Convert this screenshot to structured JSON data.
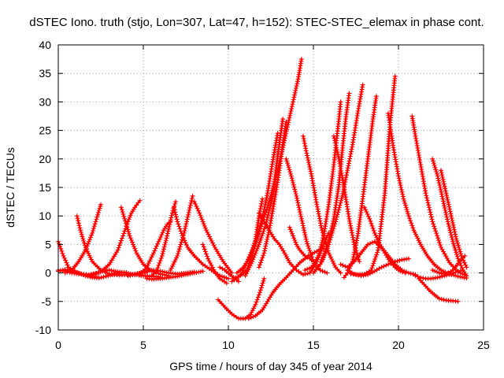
{
  "chart_data": {
    "type": "scatter",
    "title": "dSTEC Iono. truth (stjo, Lon=307, Lat=47, h=152): STEC-STEC_elemax in phase cont.",
    "xlabel": "GPS time / hours of day 345 of year 2014",
    "ylabel": "dSTEC  / TECUs",
    "xlim": [
      0,
      25
    ],
    "ylim": [
      -10,
      40
    ],
    "xticks": [
      0,
      5,
      10,
      15,
      20,
      25
    ],
    "yticks": [
      -10,
      -5,
      0,
      5,
      10,
      15,
      20,
      25,
      30,
      35,
      40
    ],
    "grid": true,
    "marker": "+",
    "color": "#ff0000",
    "series": [
      {
        "x": [
          0.0,
          0.3,
          0.6,
          1.0,
          1.5,
          2.0,
          2.4
        ],
        "y": [
          5.5,
          3.0,
          1.0,
          0.2,
          -0.3,
          -0.6,
          -0.8
        ]
      },
      {
        "x": [
          0.0,
          0.4,
          0.8,
          1.2,
          1.8,
          2.2,
          2.6,
          3.0,
          3.5,
          4.0,
          4.5,
          5.0,
          5.5,
          6.0
        ],
        "y": [
          0.5,
          0.3,
          0.0,
          -0.2,
          -0.3,
          -0.1,
          0.3,
          0.5,
          0.2,
          0.0,
          -0.3,
          -0.5,
          -0.6,
          -0.7
        ]
      },
      {
        "x": [
          0.0,
          0.4,
          0.8,
          1.2,
          1.6,
          2.0,
          2.4,
          2.8,
          3.2,
          3.6,
          4.0
        ],
        "y": [
          0.3,
          0.6,
          0.4,
          0.0,
          -0.5,
          -0.8,
          -0.9,
          -0.6,
          -0.3,
          0.0,
          0.1
        ]
      },
      {
        "x": [
          0.4,
          0.8,
          1.2,
          1.6,
          2.0,
          2.2,
          2.4,
          2.5
        ],
        "y": [
          0.0,
          0.5,
          2.0,
          4.0,
          7.0,
          9.0,
          11.0,
          12.0
        ]
      },
      {
        "x": [
          1.1,
          1.3,
          1.6,
          2.0,
          2.5,
          3.0,
          3.6,
          4.2,
          4.8,
          5.2
        ],
        "y": [
          10.0,
          7.5,
          4.5,
          2.0,
          0.5,
          -0.2,
          -0.4,
          -0.3,
          0.0,
          0.2
        ]
      },
      {
        "x": [
          2.0,
          2.5,
          3.0,
          3.5,
          3.8,
          4.1,
          4.3,
          4.5,
          4.7,
          4.8
        ],
        "y": [
          -0.3,
          0.2,
          1.5,
          4.0,
          6.5,
          9.0,
          10.5,
          11.5,
          12.3,
          12.7
        ]
      },
      {
        "x": [
          3.7,
          3.9,
          4.2,
          4.6,
          5.0,
          5.5,
          6.0,
          6.5
        ],
        "y": [
          11.5,
          9.5,
          6.5,
          3.5,
          1.5,
          0.3,
          -0.2,
          -0.5
        ]
      },
      {
        "x": [
          4.1,
          4.5,
          5.0,
          5.5,
          6.0,
          6.5,
          7.0,
          7.5,
          8.0
        ],
        "y": [
          -0.5,
          -0.3,
          0.2,
          0.5,
          0.3,
          0.0,
          -0.2,
          0.0,
          0.2
        ]
      },
      {
        "x": [
          4.8,
          5.2,
          5.6,
          5.9,
          6.2,
          6.4,
          6.6
        ],
        "y": [
          -0.3,
          1.0,
          3.5,
          5.5,
          7.5,
          8.5,
          9.0
        ]
      },
      {
        "x": [
          5.2,
          5.5,
          6.0,
          6.5,
          7.0,
          7.5,
          8.0,
          8.5
        ],
        "y": [
          -1.0,
          -1.1,
          -1.0,
          -0.8,
          -0.6,
          -0.3,
          0.0,
          0.3
        ]
      },
      {
        "x": [
          5.5,
          5.8,
          6.1,
          6.4,
          6.7,
          6.9
        ],
        "y": [
          -0.5,
          0.5,
          3.0,
          6.5,
          10.5,
          12.5
        ]
      },
      {
        "x": [
          6.8,
          7.0,
          7.3,
          7.6,
          8.0,
          8.5,
          9.0,
          9.5,
          10.0
        ],
        "y": [
          11.5,
          9.0,
          6.5,
          4.5,
          3.0,
          1.5,
          0.5,
          -0.5,
          -1.0
        ]
      },
      {
        "x": [
          6.6,
          7.0,
          7.4,
          7.7,
          7.9
        ],
        "y": [
          0.5,
          3.0,
          7.0,
          11.0,
          13.5
        ]
      },
      {
        "x": [
          8.0,
          8.3,
          8.7,
          9.2,
          9.7,
          10.2
        ],
        "y": [
          12.5,
          10.5,
          7.5,
          4.5,
          2.0,
          0.0
        ]
      },
      {
        "x": [
          8.5,
          8.8,
          9.2,
          9.5,
          9.9
        ],
        "y": [
          5.0,
          2.5,
          0.2,
          -1.0,
          -1.8
        ]
      },
      {
        "x": [
          9.5,
          9.8,
          10.1,
          10.4,
          10.6
        ],
        "y": [
          1.0,
          0.5,
          -0.3,
          -1.0,
          -1.5
        ]
      },
      {
        "x": [
          9.4,
          9.8,
          10.2,
          10.6,
          11.0,
          11.3,
          11.6,
          11.9,
          12.1
        ],
        "y": [
          -4.7,
          -6.0,
          -7.2,
          -8.0,
          -8.0,
          -7.3,
          -5.5,
          -3.0,
          -1.0
        ]
      },
      {
        "x": [
          10.2,
          10.5,
          10.8,
          11.1,
          11.4,
          11.7,
          12.0,
          12.3,
          12.6,
          12.9,
          13.2,
          13.5,
          13.8,
          14.1,
          14.3
        ],
        "y": [
          -1.5,
          -1.0,
          0.0,
          2.0,
          4.0,
          6.5,
          9.0,
          11.5,
          14.5,
          18.0,
          22.0,
          26.0,
          30.0,
          34.0,
          37.5
        ]
      },
      {
        "x": [
          10.3,
          10.7,
          11.1,
          11.4,
          11.6,
          11.8,
          12.0
        ],
        "y": [
          -1.0,
          -0.5,
          0.5,
          3.0,
          6.0,
          10.0,
          13.0
        ]
      },
      {
        "x": [
          10.5,
          10.9,
          11.3,
          11.7,
          12.0,
          12.3,
          12.6,
          12.9
        ],
        "y": [
          0.0,
          1.0,
          3.0,
          6.0,
          9.5,
          14.0,
          19.5,
          24.5
        ]
      },
      {
        "x": [
          11.0,
          11.4,
          11.8,
          12.2,
          12.6,
          12.9,
          13.2
        ],
        "y": [
          -0.5,
          2.0,
          5.0,
          8.5,
          13.5,
          20.5,
          27.0
        ]
      },
      {
        "x": [
          11.8,
          12.1,
          12.4,
          12.7,
          13.0,
          13.2,
          13.4
        ],
        "y": [
          1.0,
          3.5,
          7.5,
          12.5,
          18.0,
          22.5,
          26.5
        ]
      },
      {
        "x": [
          11.2,
          11.6,
          12.0,
          12.3,
          12.6,
          13.0,
          13.4,
          13.8,
          14.2,
          14.7,
          15.2,
          15.6
        ],
        "y": [
          -8.0,
          -7.5,
          -6.5,
          -5.0,
          -3.5,
          -2.0,
          -0.8,
          0.5,
          1.8,
          3.0,
          3.8,
          4.3
        ]
      },
      {
        "x": [
          11.8,
          12.1,
          12.4,
          12.7,
          13.0,
          13.3,
          13.6,
          14.0,
          14.4,
          14.8,
          15.2,
          15.6,
          15.9
        ],
        "y": [
          10.5,
          9.0,
          7.5,
          6.0,
          5.0,
          3.5,
          1.8,
          0.5,
          -0.3,
          0.0,
          2.0,
          5.0,
          7.0
        ]
      },
      {
        "x": [
          13.4,
          13.7,
          14.0,
          14.3,
          14.6,
          15.0,
          15.4,
          15.8
        ],
        "y": [
          20.0,
          17.0,
          13.5,
          9.5,
          5.5,
          2.0,
          0.5,
          0.0
        ]
      },
      {
        "x": [
          13.6,
          13.8,
          14.0,
          14.2,
          14.5,
          14.8,
          15.0
        ],
        "y": [
          8.0,
          6.5,
          5.0,
          4.0,
          3.0,
          2.5,
          2.0
        ]
      },
      {
        "x": [
          14.4,
          14.6,
          14.9,
          15.2,
          15.5,
          15.9,
          16.3,
          16.6
        ],
        "y": [
          24.0,
          21.0,
          17.0,
          12.0,
          7.5,
          3.5,
          1.0,
          0.0
        ]
      },
      {
        "x": [
          14.5,
          14.9,
          15.3,
          15.6,
          15.9,
          16.2,
          16.5,
          16.6
        ],
        "y": [
          0.5,
          1.0,
          3.0,
          6.5,
          12.0,
          19.0,
          27.0,
          30.0
        ]
      },
      {
        "x": [
          15.0,
          15.4,
          15.8,
          16.2,
          16.5,
          16.7,
          16.9,
          17.1
        ],
        "y": [
          0.0,
          1.5,
          4.5,
          9.5,
          15.5,
          21.5,
          27.0,
          31.5
        ]
      },
      {
        "x": [
          15.5,
          15.9,
          16.3,
          16.7,
          17.0,
          17.3,
          17.6,
          17.9
        ],
        "y": [
          2.0,
          5.0,
          9.0,
          13.5,
          18.0,
          22.5,
          28.0,
          33.0
        ]
      },
      {
        "x": [
          16.2,
          16.5,
          16.8,
          17.1,
          17.4,
          17.7
        ],
        "y": [
          24.0,
          20.0,
          15.0,
          9.5,
          5.0,
          2.0
        ]
      },
      {
        "x": [
          16.6,
          17.0,
          17.4,
          17.8,
          18.2,
          18.6,
          19.0,
          19.4,
          19.8,
          20.2,
          20.6,
          21.0
        ],
        "y": [
          1.5,
          1.0,
          2.0,
          3.5,
          5.0,
          5.5,
          4.5,
          3.0,
          1.5,
          0.5,
          0.0,
          -0.3
        ]
      },
      {
        "x": [
          16.8,
          17.0,
          17.3,
          17.6,
          17.9,
          18.2,
          18.5,
          18.7
        ],
        "y": [
          -0.8,
          0.0,
          2.0,
          6.5,
          13.0,
          20.0,
          27.0,
          31.0
        ]
      },
      {
        "x": [
          17.0,
          17.4,
          17.8,
          18.2,
          18.6,
          19.0,
          19.4,
          19.8,
          20.2,
          20.6
        ],
        "y": [
          0.5,
          -0.2,
          -0.5,
          -0.3,
          0.3,
          1.0,
          1.5,
          2.0,
          2.3,
          2.5
        ]
      },
      {
        "x": [
          17.2,
          17.6,
          18.0,
          18.4,
          18.8,
          19.2,
          19.5,
          19.8
        ],
        "y": [
          -0.2,
          -0.3,
          -0.2,
          0.5,
          4.0,
          14.0,
          26.0,
          34.5
        ]
      },
      {
        "x": [
          18.0,
          18.3,
          18.6,
          18.9,
          19.2,
          19.5,
          19.8,
          20.1,
          20.4
        ],
        "y": [
          11.5,
          9.5,
          7.0,
          5.0,
          3.5,
          2.0,
          1.0,
          0.3,
          0.0
        ]
      },
      {
        "x": [
          19.4,
          19.7,
          20.0,
          20.3,
          20.6,
          20.9,
          21.3,
          21.7,
          22.1,
          22.5,
          23.0,
          23.5,
          24.0
        ],
        "y": [
          28.0,
          22.0,
          17.0,
          13.0,
          10.0,
          7.5,
          5.0,
          3.0,
          1.5,
          0.5,
          -0.2,
          -0.6,
          -0.9
        ]
      },
      {
        "x": [
          20.8,
          21.0,
          21.3,
          21.6,
          22.0,
          22.5,
          23.0,
          23.5,
          24.0
        ],
        "y": [
          27.5,
          24.0,
          19.0,
          14.0,
          9.0,
          4.5,
          1.8,
          0.2,
          -0.5
        ]
      },
      {
        "x": [
          21.0,
          21.3,
          21.6,
          21.9,
          22.3,
          22.7,
          23.1,
          23.5,
          23.8
        ],
        "y": [
          -0.5,
          -0.8,
          -1.0,
          -1.0,
          -0.8,
          -0.5,
          -0.2,
          0.3,
          0.5
        ]
      },
      {
        "x": [
          21.2,
          21.5,
          21.8,
          22.1,
          22.4,
          22.8,
          23.2,
          23.5
        ],
        "y": [
          -1.0,
          -2.0,
          -3.0,
          -3.8,
          -4.5,
          -4.8,
          -4.9,
          -5.0
        ]
      },
      {
        "x": [
          22.0,
          22.3,
          22.6,
          22.9,
          23.2,
          23.5,
          23.8,
          24.0
        ],
        "y": [
          20.0,
          17.0,
          13.0,
          9.0,
          5.5,
          2.5,
          0.5,
          -0.5
        ]
      },
      {
        "x": [
          22.5,
          22.8,
          23.1,
          23.4,
          23.7,
          24.0
        ],
        "y": [
          18.0,
          14.0,
          10.0,
          6.0,
          3.0,
          1.0
        ]
      },
      {
        "x": [
          22.0,
          22.4,
          22.8,
          23.2,
          23.6,
          23.9
        ],
        "y": [
          0.5,
          0.0,
          -0.2,
          0.5,
          2.0,
          3.0
        ]
      }
    ]
  }
}
